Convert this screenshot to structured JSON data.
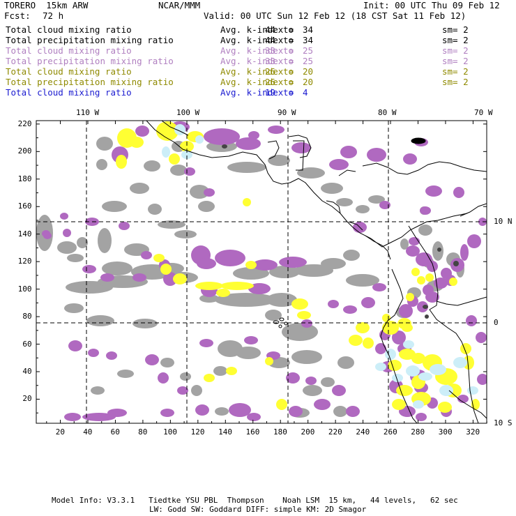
{
  "header": {
    "model": "TORERO  15km ARW",
    "source": "NCAR/MMM",
    "init": "Init: 00 UTC Thu 09 Feb 12",
    "fcst_label": "Fcst:",
    "fcst_value": "72 h",
    "valid": "Valid: 00 UTC Sun 12 Feb 12 (18 CST Sat 11 Feb 12)"
  },
  "legend": [
    {
      "field": "Total cloud mixing ratio",
      "index": "Avg. k-index =",
      "from": "44",
      "to_word": "to",
      "to": "34",
      "sm": "sm= 2",
      "color": "#000000"
    },
    {
      "field": "Total precipitation mixing ratio",
      "index": "Avg. k-index =",
      "from": "44",
      "to_word": "to",
      "to": "34",
      "sm": "sm= 2",
      "color": "#000000"
    },
    {
      "field": "Total cloud mixing ratio",
      "index": "Avg. k-index =",
      "from": "33",
      "to_word": "to",
      "to": "25",
      "sm": "sm= 2",
      "color": "#b07fc0"
    },
    {
      "field": "Total precipitation mixing ratio",
      "index": "Avg. k-index =",
      "from": "33",
      "to_word": "to",
      "to": "25",
      "sm": "sm= 2",
      "color": "#b07fc0"
    },
    {
      "field": "Total cloud mixing ratio",
      "index": "Avg. k-index =",
      "from": "26",
      "to_word": "to",
      "to": "20",
      "sm": "sm= 2",
      "color": "#8f8a00"
    },
    {
      "field": "Total precipitation mixing ratio",
      "index": "Avg. k-index =",
      "from": "26",
      "to_word": "to",
      "to": "20",
      "sm": "sm= 2",
      "color": "#8f8a00"
    },
    {
      "field": "Total cloud mixing ratio",
      "index": "Avg. k-index =",
      "from": "19",
      "to_word": "to",
      "to": "4",
      "sm": "",
      "color": "#1a1ad0"
    }
  ],
  "map": {
    "lon_labels": [
      "110 W",
      "100 W",
      "90 W",
      "80 W",
      "70 W"
    ],
    "lat_labels": [
      "10 N",
      "0",
      "10 S"
    ],
    "x_ticks": [
      "20",
      "40",
      "60",
      "80",
      "100",
      "120",
      "140",
      "160",
      "180",
      "200",
      "220",
      "240",
      "260",
      "280",
      "300",
      "320"
    ],
    "y_ticks": [
      "20",
      "40",
      "60",
      "80",
      "100",
      "120",
      "140",
      "160",
      "180",
      "200",
      "220"
    ],
    "colors": {
      "gray": "#a3a3a3",
      "purple": "#b069c0",
      "yellow": "#ffff33",
      "cyan": "#cceef8",
      "coast": "#000000",
      "grid": "#000000"
    }
  },
  "footer": {
    "line1": "Model Info: V3.3.1   Tiedtke YSU PBL  Thompson    Noah LSM  15 km,   44 levels,   62 sec",
    "line2": "LW: Godd SW: Goddard DIFF: simple KM: 2D Smagor"
  }
}
